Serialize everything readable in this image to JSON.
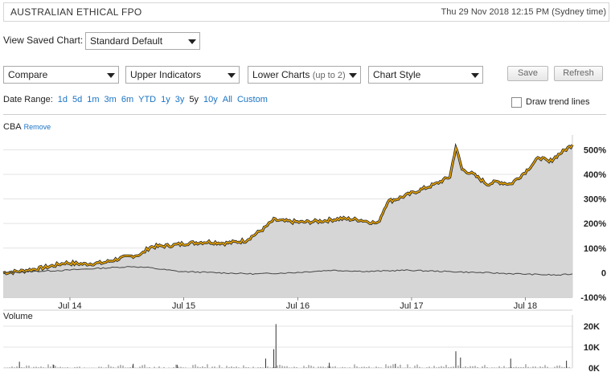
{
  "header": {
    "title": "AUSTRALIAN ETHICAL FPO",
    "timestamp": "Thu 29 Nov 2018 12:15 PM (Sydney time)"
  },
  "saved_chart": {
    "label": "View Saved Chart:",
    "value": "Standard Default"
  },
  "toolbar": {
    "compare": "Compare",
    "upper_indicators": "Upper Indicators",
    "lower_charts": "Lower Charts",
    "lower_charts_hint": "(up to 2)",
    "chart_style": "Chart Style",
    "save_label": "Save",
    "refresh_label": "Refresh"
  },
  "date_range": {
    "label": "Date Range:",
    "options": [
      "1d",
      "5d",
      "1m",
      "3m",
      "6m",
      "YTD",
      "1y",
      "3y",
      "5y",
      "10y",
      "All",
      "Custom"
    ],
    "selected": "5y"
  },
  "trend_lines_label": "Draw trend lines",
  "compare_series": {
    "ticker": "CBA",
    "remove_label": "Remove"
  },
  "volume_label": "Volume",
  "colors": {
    "main_line": "#e8a300",
    "main_fill": "#d6d6d6",
    "compare_line": "#444444",
    "link": "#1a73c5"
  },
  "chart_data": [
    {
      "type": "area",
      "y_unit": "%",
      "ylim": [
        -100,
        560
      ],
      "y_ticks": [
        -100,
        0,
        100,
        200,
        300,
        400,
        500
      ],
      "y_tick_labels": [
        "-100%",
        "0",
        "100%",
        "200%",
        "300%",
        "400%",
        "500%"
      ],
      "x_tick_labels": [
        "Jul 14",
        "Jul 15",
        "Jul 16",
        "Jul 17",
        "Jul 18"
      ],
      "x_range": [
        "2013-11-29",
        "2018-11-29"
      ],
      "grid": true,
      "series": [
        {
          "x": [
            "2013-11-29",
            "2014-01-15",
            "2014-03-15",
            "2014-05-15",
            "2014-06-15",
            "2014-08-15",
            "2014-10-15",
            "2014-12-15",
            "2015-02-15",
            "2015-03-15",
            "2015-05-15",
            "2015-07-15",
            "2015-09-15",
            "2015-11-15",
            "2016-01-15",
            "2016-03-15",
            "2016-04-15",
            "2016-05-15",
            "2016-07-15",
            "2016-09-15",
            "2016-11-15",
            "2017-01-15",
            "2017-03-15",
            "2017-04-15",
            "2017-05-15",
            "2017-07-15",
            "2017-09-15",
            "2017-11-01",
            "2017-11-20",
            "2017-12-10",
            "2018-01-15",
            "2018-03-01",
            "2018-04-01",
            "2018-05-15",
            "2018-07-01",
            "2018-08-15",
            "2018-09-15",
            "2018-10-15",
            "2018-11-29"
          ],
          "values": [
            0,
            5,
            15,
            30,
            40,
            35,
            40,
            60,
            75,
            105,
            110,
            120,
            125,
            120,
            130,
            180,
            215,
            210,
            205,
            210,
            220,
            215,
            200,
            290,
            300,
            330,
            360,
            390,
            510,
            420,
            400,
            360,
            370,
            360,
            410,
            470,
            450,
            480,
            520
          ]
        },
        {
          "x": [
            "2013-11-29",
            "2014-06-15",
            "2015-01-15",
            "2015-03-15",
            "2015-06-15",
            "2015-10-15",
            "2016-02-15",
            "2016-06-15",
            "2016-10-15",
            "2017-02-15",
            "2017-06-15",
            "2017-10-15",
            "2018-02-15",
            "2018-06-15",
            "2018-10-15",
            "2018-11-29"
          ],
          "values": [
            0,
            10,
            25,
            20,
            5,
            0,
            -5,
            0,
            10,
            5,
            10,
            5,
            0,
            -5,
            -10,
            -5
          ]
        }
      ]
    },
    {
      "type": "bar",
      "title": "Volume",
      "y_ticks": [
        0,
        10000,
        20000
      ],
      "y_tick_labels": [
        "0K",
        "10K",
        "20K"
      ],
      "ylim": [
        0,
        20000
      ],
      "x_range": [
        "2013-11-29",
        "2018-11-29"
      ],
      "spikes": [
        {
          "x": "2014-01-20",
          "value": 3000
        },
        {
          "x": "2014-05-10",
          "value": 1500
        },
        {
          "x": "2015-01-20",
          "value": 2000
        },
        {
          "x": "2015-06-10",
          "value": 1500
        },
        {
          "x": "2016-03-20",
          "value": 4500
        },
        {
          "x": "2016-04-15",
          "value": 9000
        },
        {
          "x": "2016-04-22",
          "value": 21000
        },
        {
          "x": "2016-10-10",
          "value": 2500
        },
        {
          "x": "2017-05-10",
          "value": 2000
        },
        {
          "x": "2017-11-20",
          "value": 8000
        },
        {
          "x": "2017-12-05",
          "value": 5000
        },
        {
          "x": "2018-05-15",
          "value": 4500
        },
        {
          "x": "2018-11-10",
          "value": 3500
        }
      ]
    }
  ]
}
